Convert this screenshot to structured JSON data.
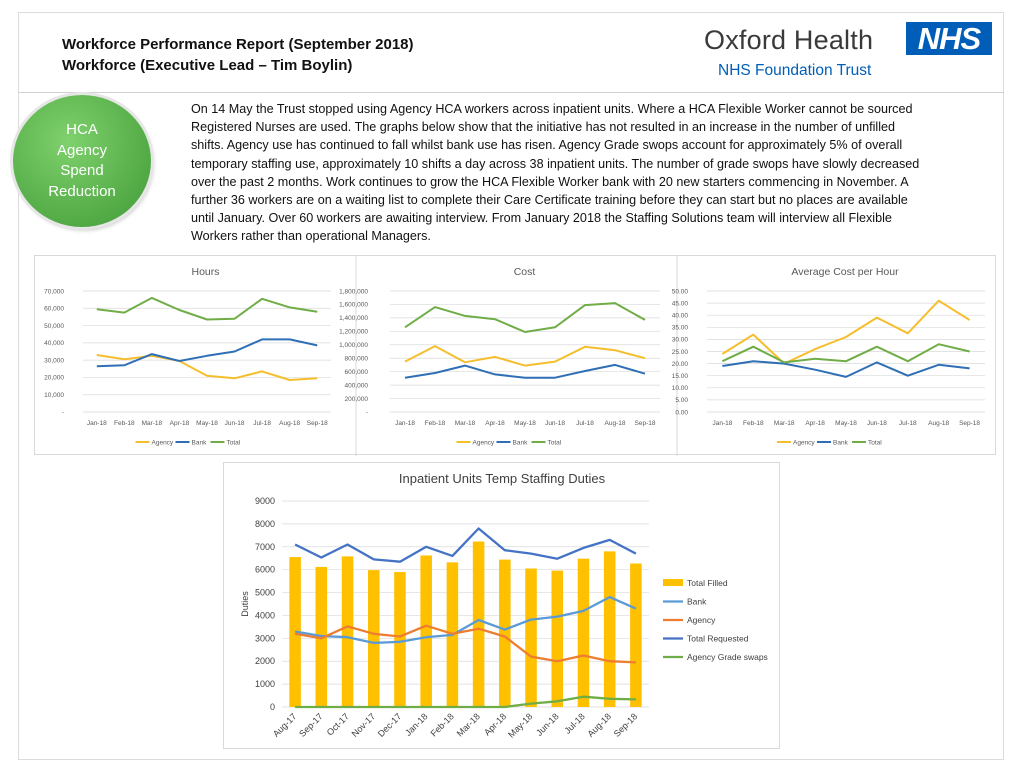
{
  "header": {
    "title_line1": "Workforce Performance Report (September 2018)",
    "title_line2": "Workforce (Executive Lead – Tim Boylin)"
  },
  "logo": {
    "name": "Oxford Health",
    "badge": "NHS",
    "subtitle": "NHS Foundation Trust"
  },
  "badge": {
    "lines": [
      "HCA",
      "Agency",
      "Spend",
      "Reduction"
    ],
    "color": "#5cb84a"
  },
  "intro": {
    "lines": [
      "On 14 May the Trust stopped using Agency HCA workers across inpatient units.  Where a HCA Flexible Worker cannot be sourced",
      "Registered Nurses are used.    The graphs below show that the initiative has not resulted in an increase in the number of unfilled",
      "shifts.  Agency use has continued to fall whilst bank use has risen.  Agency Grade swops account for approximately 5% of overall",
      "temporary staffing use, approximately 10 shifts a day across 38 inpatient units.  The number of grade swops have slowly decreased",
      "over the past 2 months.  Work continues to grow the HCA Flexible Worker bank with 20 new starters commencing in November.  A",
      "further 36 workers are on a waiting list to complete their Care Certificate training before they can start but no places are available",
      "until January.  Over 60 workers are awaiting interview.  From January 2018 the Staffing Solutions team will interview all Flexible",
      "Workers rather than operational Managers."
    ]
  },
  "colors": {
    "agency": "#f5be2c",
    "bank": "#2f6fb5",
    "total": "#70ad47",
    "grid": "#d9d9d9",
    "bar": "#ffc000",
    "big_bank": "#5b9bd5",
    "big_agency": "#ed7d31",
    "big_total": "#4472c4",
    "big_swaps": "#70ad47"
  },
  "chart_data": [
    {
      "type": "line",
      "title": "Hours",
      "categories": [
        "Jan-18",
        "Feb-18",
        "Mar-18",
        "Apr-18",
        "May-18",
        "Jun-18",
        "Jul-18",
        "Aug-18",
        "Sep-18"
      ],
      "y_ticks": [
        "70,000",
        "60,000",
        "50,000",
        "40,000",
        "30,000",
        "20,000",
        "10,000",
        "-"
      ],
      "ylim": [
        0,
        70000
      ],
      "legend": [
        "Agency",
        "Bank",
        "Total"
      ],
      "series": [
        {
          "name": "Agency",
          "values": [
            33000,
            30500,
            32500,
            29500,
            21000,
            19500,
            23500,
            18500,
            19500
          ]
        },
        {
          "name": "Bank",
          "values": [
            26500,
            27000,
            33500,
            29500,
            32500,
            35000,
            42000,
            42000,
            38500
          ]
        },
        {
          "name": "Total",
          "values": [
            59500,
            57500,
            66000,
            59000,
            53500,
            54000,
            65500,
            60500,
            58000
          ]
        }
      ]
    },
    {
      "type": "line",
      "title": "Cost",
      "categories": [
        "Jan-18",
        "Feb-18",
        "Mar-18",
        "Apr-18",
        "May-18",
        "Jun-18",
        "Jul-18",
        "Aug-18",
        "Sep-18"
      ],
      "y_ticks": [
        "1,800,000",
        "1,600,000",
        "1,400,000",
        "1,200,000",
        "1,000,000",
        "800,000",
        "600,000",
        "400,000",
        "200,000",
        "-"
      ],
      "ylim": [
        0,
        1800000
      ],
      "legend": [
        "Agency",
        "Bank",
        "Total"
      ],
      "series": [
        {
          "name": "Agency",
          "values": [
            750000,
            980000,
            740000,
            820000,
            690000,
            750000,
            970000,
            920000,
            800000
          ]
        },
        {
          "name": "Bank",
          "values": [
            510000,
            580000,
            690000,
            560000,
            510000,
            510000,
            610000,
            700000,
            570000
          ]
        },
        {
          "name": "Total",
          "values": [
            1260000,
            1560000,
            1430000,
            1380000,
            1190000,
            1260000,
            1590000,
            1620000,
            1370000
          ]
        }
      ]
    },
    {
      "type": "line",
      "title": "Average Cost per Hour",
      "categories": [
        "Jan-18",
        "Feb-18",
        "Mar-18",
        "Apr-18",
        "May-18",
        "Jun-18",
        "Jul-18",
        "Aug-18",
        "Sep-18"
      ],
      "y_ticks": [
        "50.00",
        "45.00",
        "40.00",
        "35.00",
        "30.00",
        "25.00",
        "20.00",
        "15.00",
        "10.00",
        "5.00",
        "0.00"
      ],
      "ylim": [
        0,
        50
      ],
      "legend": [
        "Agency",
        "Bank",
        "Total"
      ],
      "series": [
        {
          "name": "Agency",
          "values": [
            24,
            32,
            20,
            26,
            31,
            39,
            32.5,
            46,
            38
          ]
        },
        {
          "name": "Bank",
          "values": [
            19,
            21,
            20,
            17.5,
            14.5,
            20.5,
            15,
            19.5,
            18
          ]
        },
        {
          "name": "Total",
          "values": [
            21,
            27,
            20.5,
            22,
            21,
            27,
            21,
            28,
            25
          ]
        }
      ]
    },
    {
      "type": "bar",
      "title": "Inpatient Units Temp Staffing Duties",
      "ylabel": "Duties",
      "categories": [
        "Aug-17",
        "Sep-17",
        "Oct-17",
        "Nov-17",
        "Dec-17",
        "Jan-18",
        "Feb-18",
        "Mar-18",
        "Apr-18",
        "May-18",
        "Jun-18",
        "Jul-18",
        "Aug-18",
        "Sep-18"
      ],
      "y_ticks": [
        "9000",
        "8000",
        "7000",
        "6000",
        "5000",
        "4000",
        "3000",
        "2000",
        "1000",
        "0"
      ],
      "ylim": [
        0,
        9000
      ],
      "legend": [
        "Total Filled",
        "Bank",
        "Agency",
        "Total Requested",
        "Agency Grade swaps"
      ],
      "series": [
        {
          "name": "Total Filled",
          "kind": "bar",
          "values": [
            6550,
            6120,
            6580,
            5980,
            5900,
            6620,
            6320,
            7230,
            6440,
            6050,
            5960,
            6480,
            6800,
            6270
          ]
        },
        {
          "name": "Bank",
          "kind": "line",
          "values": [
            3300,
            3100,
            3050,
            2800,
            2850,
            3050,
            3150,
            3800,
            3380,
            3820,
            3950,
            4200,
            4800,
            4300
          ]
        },
        {
          "name": "Agency",
          "kind": "line",
          "values": [
            3200,
            3000,
            3520,
            3200,
            3080,
            3550,
            3200,
            3420,
            3080,
            2200,
            2000,
            2250,
            2000,
            1950
          ]
        },
        {
          "name": "Total Requested",
          "kind": "line",
          "values": [
            7100,
            6530,
            7100,
            6450,
            6350,
            7000,
            6600,
            7800,
            6850,
            6700,
            6480,
            6950,
            7300,
            6700
          ]
        },
        {
          "name": "Agency Grade swaps",
          "kind": "line",
          "values": [
            0,
            0,
            0,
            0,
            0,
            0,
            0,
            0,
            0,
            150,
            250,
            450,
            360,
            330
          ]
        }
      ]
    }
  ]
}
